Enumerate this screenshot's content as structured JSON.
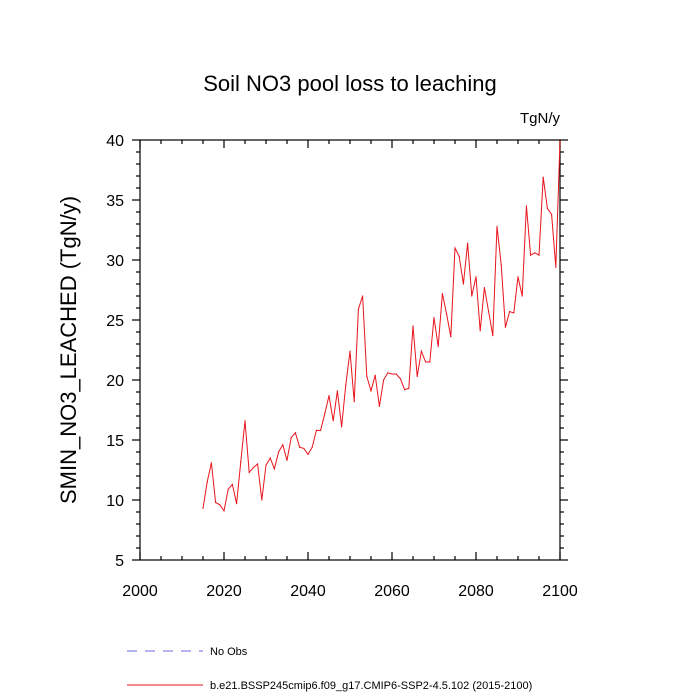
{
  "chart_data": {
    "type": "line",
    "title": "Soil NO3 pool loss to leaching",
    "units": "TgN/y",
    "xlabel": "",
    "ylabel": "SMIN_NO3_LEACHED  (TgN/y)",
    "xlim": [
      2000,
      2100
    ],
    "ylim": [
      5,
      40
    ],
    "xticks": [
      2000,
      2020,
      2040,
      2060,
      2080,
      2100
    ],
    "yticks": [
      5,
      10,
      15,
      20,
      25,
      30,
      35,
      40
    ],
    "grid": false,
    "legend_position": "bottom",
    "colors": {
      "model": "#e8141b",
      "obs": "#6a6adf"
    },
    "series": [
      {
        "name": "b.e21.BSSP245cmip6.f09_g17.CMIP6-SSP2-4.5.102 (2015-2100)",
        "style": "solid",
        "x": [
          2015,
          2016,
          2017,
          2018,
          2019,
          2020,
          2021,
          2022,
          2023,
          2024,
          2025,
          2026,
          2027,
          2028,
          2029,
          2030,
          2031,
          2032,
          2033,
          2034,
          2035,
          2036,
          2037,
          2038,
          2039,
          2040,
          2041,
          2042,
          2043,
          2044,
          2045,
          2046,
          2047,
          2048,
          2049,
          2050,
          2051,
          2052,
          2053,
          2054,
          2055,
          2056,
          2057,
          2058,
          2059,
          2060,
          2061,
          2062,
          2063,
          2064,
          2065,
          2066,
          2067,
          2068,
          2069,
          2070,
          2071,
          2072,
          2073,
          2074,
          2075,
          2076,
          2077,
          2078,
          2079,
          2080,
          2081,
          2082,
          2083,
          2084,
          2085,
          2086,
          2087,
          2088,
          2089,
          2090,
          2091,
          2092,
          2093,
          2094,
          2095,
          2096,
          2097,
          2098,
          2099,
          2100
        ],
        "values": [
          9.3,
          11.5,
          13.1,
          9.8,
          9.6,
          9.1,
          10.9,
          11.3,
          9.7,
          13.2,
          16.6,
          12.3,
          12.7,
          13.0,
          10.0,
          12.9,
          13.5,
          12.6,
          14.0,
          14.6,
          13.3,
          15.2,
          15.6,
          14.4,
          14.3,
          13.8,
          14.4,
          15.8,
          15.8,
          17.2,
          18.7,
          16.6,
          19.1,
          16.1,
          19.6,
          22.4,
          18.2,
          25.9,
          27.0,
          20.3,
          19.1,
          20.4,
          17.8,
          20.0,
          20.6,
          20.5,
          20.5,
          20.1,
          19.2,
          19.3,
          24.5,
          20.3,
          22.4,
          21.5,
          21.5,
          25.2,
          22.8,
          27.2,
          25.5,
          23.6,
          31.0,
          30.3,
          28.0,
          31.4,
          27.0,
          28.6,
          24.1,
          27.7,
          25.7,
          23.7,
          32.8,
          29.6,
          24.4,
          25.7,
          25.6,
          28.6,
          27.0,
          34.5,
          30.4,
          30.6,
          30.4,
          36.9,
          34.3,
          33.8,
          29.4,
          39.9
        ]
      }
    ],
    "obs_series": {
      "name": "No Obs",
      "style": "dashed"
    }
  }
}
